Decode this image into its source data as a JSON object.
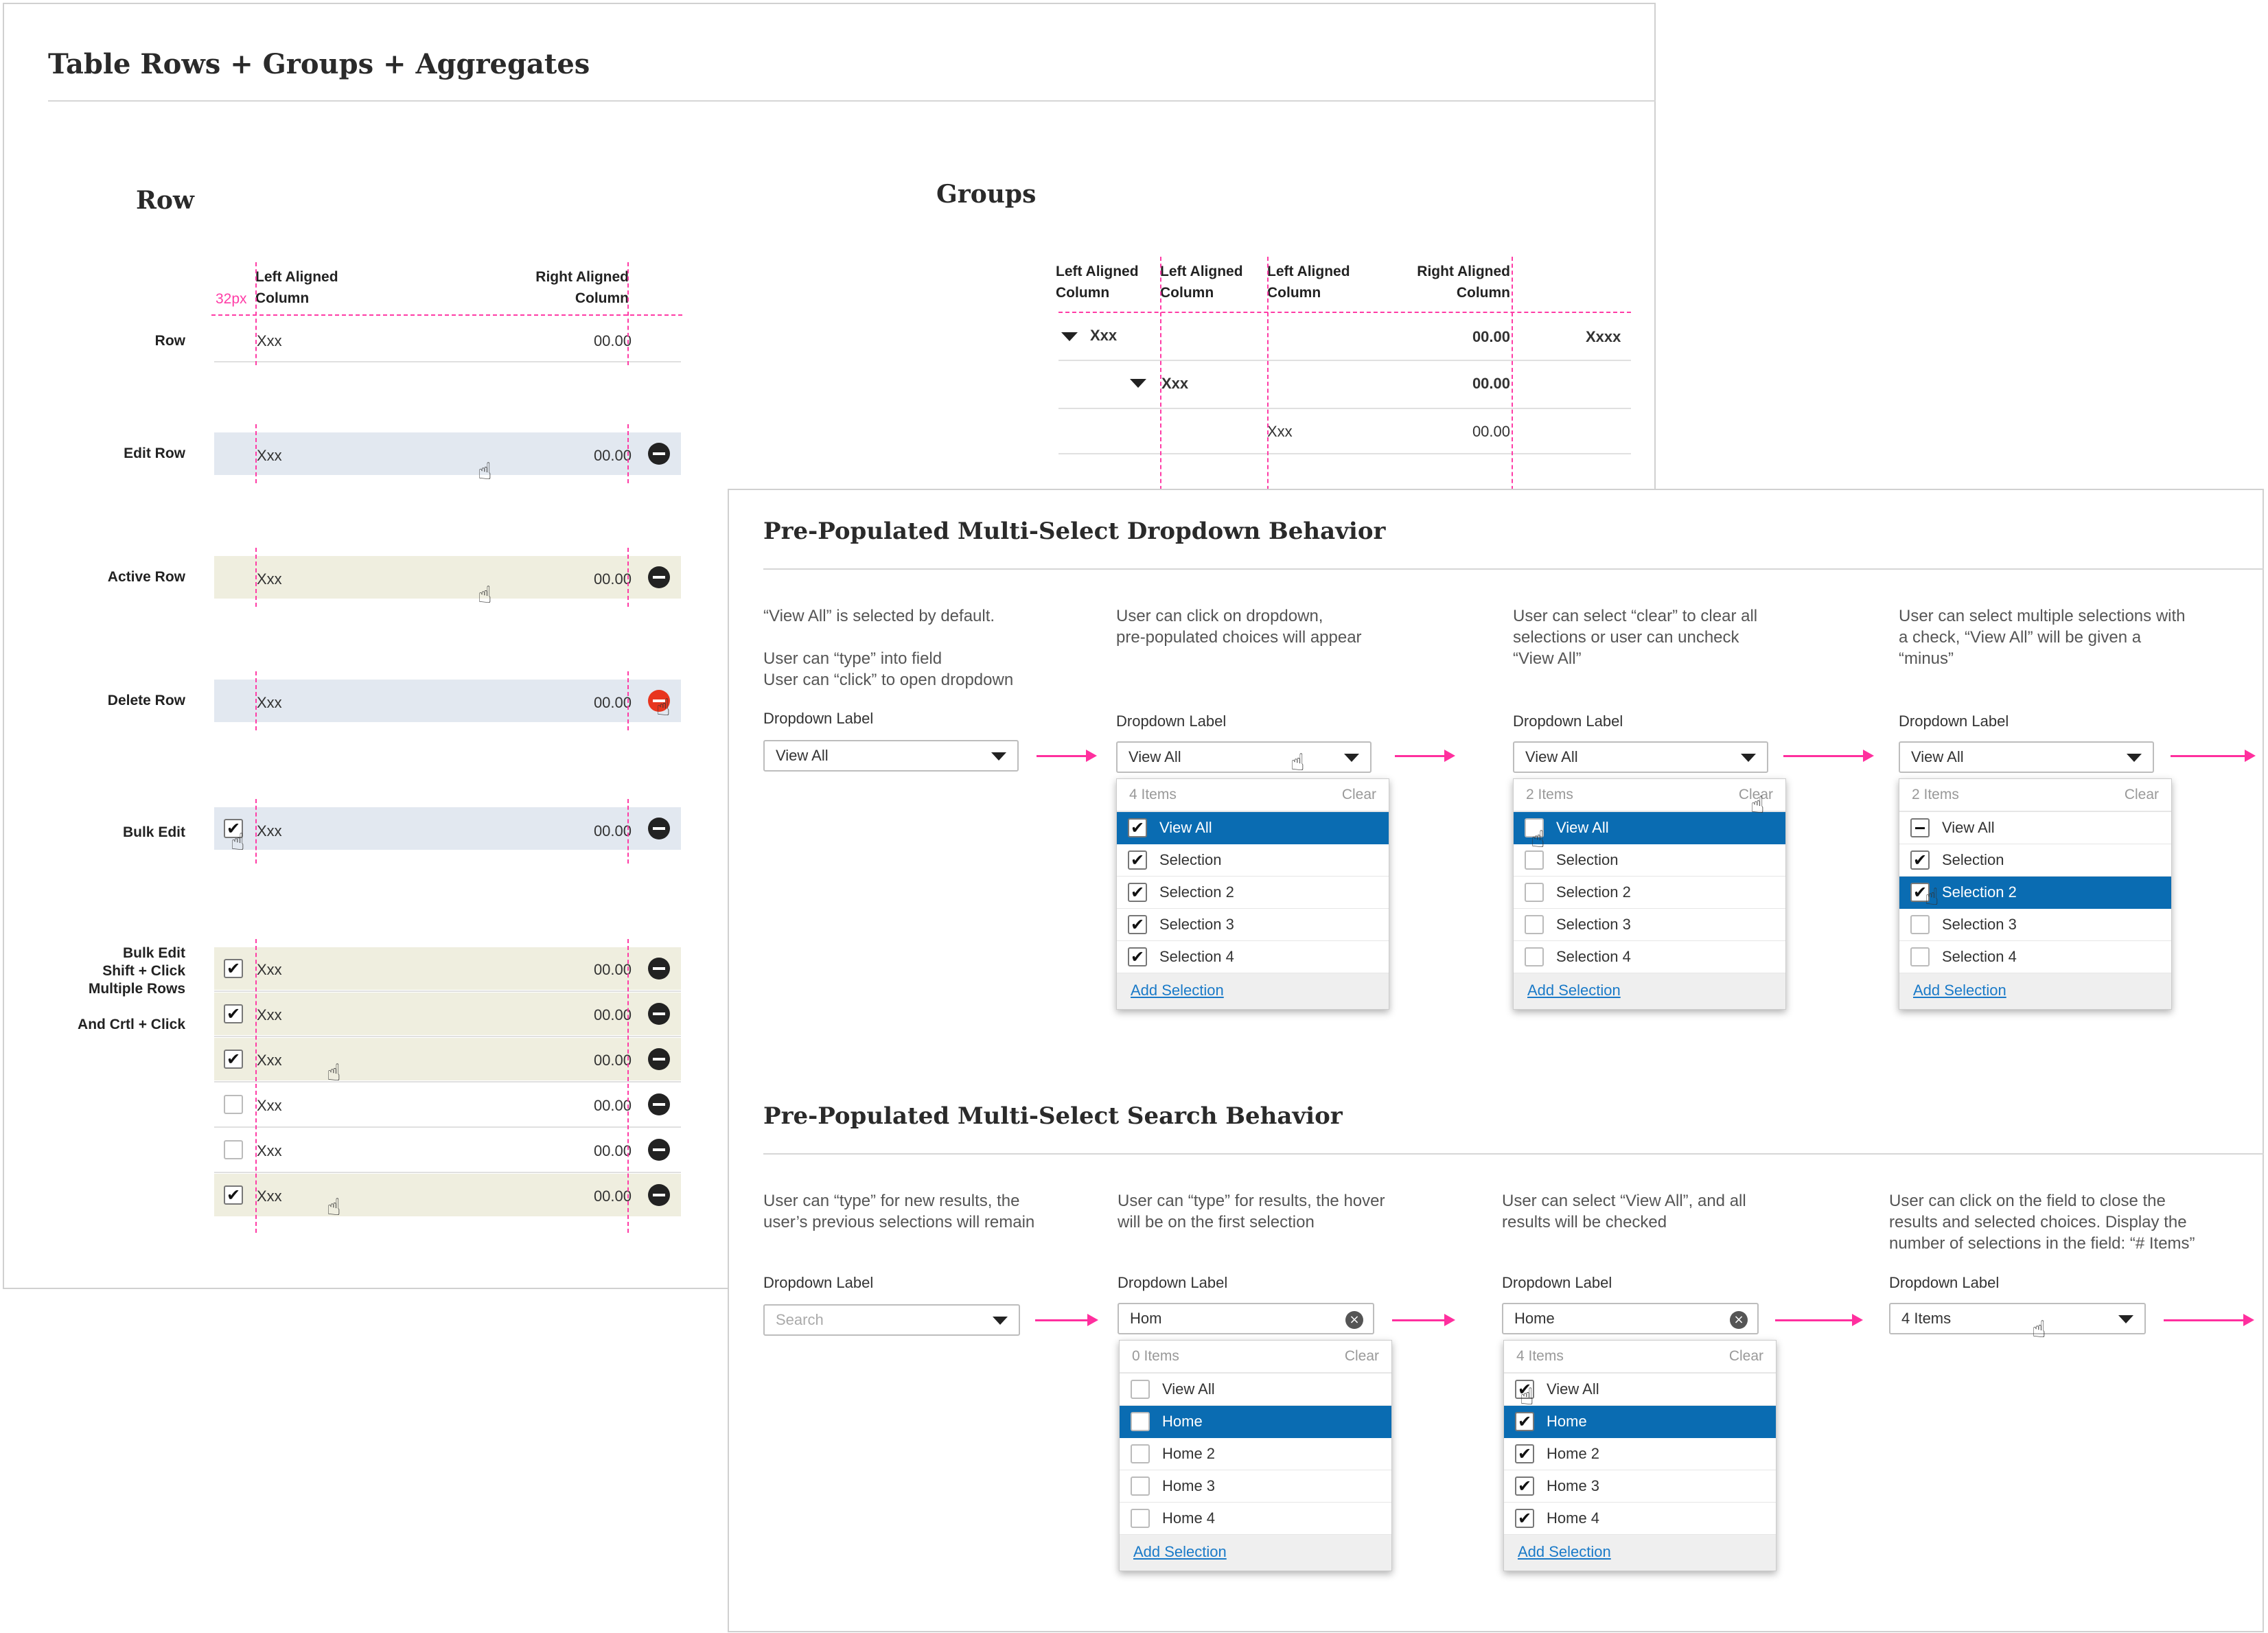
{
  "main_title": "Table Rows + Groups + Aggregates",
  "row_section": {
    "title": "Row",
    "guide_label": "32px",
    "header": {
      "left": "Left Aligned\nColumn",
      "right": "Right Aligned\nColumn"
    },
    "rows": [
      {
        "label": "Row",
        "text": "Xxx",
        "value": "00.00"
      },
      {
        "label": "Edit Row",
        "text": "Xxx",
        "value": "00.00"
      },
      {
        "label": "Active Row",
        "text": "Xxx",
        "value": "00.00"
      },
      {
        "label": "Delete Row",
        "text": "Xxx",
        "value": "00.00"
      },
      {
        "label": "Bulk Edit",
        "text": "Xxx",
        "value": "00.00"
      }
    ],
    "bulk": {
      "label": "Bulk Edit\nShift + Click\nMultiple Rows",
      "label2": "And Crtl + Click",
      "rows": [
        {
          "text": "Xxx",
          "value": "00.00",
          "checked": true
        },
        {
          "text": "Xxx",
          "value": "00.00",
          "checked": true
        },
        {
          "text": "Xxx",
          "value": "00.00",
          "checked": true
        },
        {
          "text": "Xxx",
          "value": "00.00",
          "checked": false
        },
        {
          "text": "Xxx",
          "value": "00.00",
          "checked": false
        },
        {
          "text": "Xxx",
          "value": "00.00",
          "checked": true
        }
      ]
    }
  },
  "groups_section": {
    "title": "Groups",
    "headers": [
      "Left Aligned\nColumn",
      "Left Aligned\nColumn",
      "Left Aligned\nColumn",
      "Right Aligned\nColumn"
    ],
    "rows": [
      {
        "c1": "Xxx",
        "c4": "00.00",
        "c5": "Xxxx"
      },
      {
        "c2": "Xxx",
        "c4": "00.00"
      },
      {
        "c3": "Xxx",
        "c4": "00.00"
      }
    ]
  },
  "dropdown_section": {
    "title": "Pre-Populated Multi-Select Dropdown Behavior",
    "steps": [
      {
        "desc": "“View All” is selected by default.\n\nUser can “type” into field\nUser can “click” to open dropdown",
        "label": "Dropdown Label",
        "value": "View All"
      },
      {
        "desc": "User can click on dropdown,\npre-populated choices will appear",
        "label": "Dropdown Label",
        "value": "View All",
        "menu": {
          "count": "4 Items",
          "clear": "Clear",
          "items": [
            "View All",
            "Selection",
            "Selection 2",
            "Selection 3",
            "Selection 4"
          ],
          "add": "Add Selection"
        }
      },
      {
        "desc": "User can select “clear” to clear all\nselections or user can uncheck\n“View All”",
        "label": "Dropdown Label",
        "value": "View All",
        "menu": {
          "count": "2 Items",
          "clear": "Clear",
          "items": [
            "View All",
            "Selection",
            "Selection 2",
            "Selection 3",
            "Selection 4"
          ],
          "add": "Add Selection"
        }
      },
      {
        "desc": "User can select multiple selections with\na check, “View All” will be given a\n“minus”",
        "label": "Dropdown Label",
        "value": "View All",
        "menu": {
          "count": "2 Items",
          "clear": "Clear",
          "items": [
            "View All",
            "Selection",
            "Selection 2",
            "Selection 3",
            "Selection 4"
          ],
          "add": "Add Selection"
        }
      }
    ]
  },
  "search_section": {
    "title": "Pre-Populated Multi-Select Search Behavior",
    "steps": [
      {
        "desc": "User can “type” for new results, the\nuser’s previous selections will remain",
        "label": "Dropdown Label",
        "placeholder": "Search"
      },
      {
        "desc": "User can “type” for results, the hover\nwill be on the first selection",
        "label": "Dropdown Label",
        "value": "Hom",
        "menu": {
          "count": "0 Items",
          "clear": "Clear",
          "items": [
            "View All",
            "Home",
            "Home 2",
            "Home 3",
            "Home 4"
          ],
          "add": "Add Selection"
        }
      },
      {
        "desc": "User can select “View All”, and all\nresults will be checked",
        "label": "Dropdown Label",
        "value": "Home",
        "menu": {
          "count": "4 Items",
          "clear": "Clear",
          "items": [
            "View All",
            "Home",
            "Home 2",
            "Home 3",
            "Home 4"
          ],
          "add": "Add Selection"
        }
      },
      {
        "desc": "User can click on the field to close the\nresults and selected choices.  Display the\nnumber of selections in the field: “# Items”",
        "label": "Dropdown Label",
        "value": "4 Items"
      }
    ]
  },
  "colors": {
    "guide": "#ff3ca6",
    "arrow": "#ff2f9e",
    "selected": "#0a6cb2",
    "edit_bg": "#e2e8f0",
    "active_bg": "#efeedf",
    "delete_icon": "#e8351e"
  },
  "icons": [
    "minus-circle-icon",
    "hand-cursor-icon",
    "checkmark-icon",
    "caret-down-icon",
    "clear-x-icon",
    "collapse-triangle-icon"
  ]
}
